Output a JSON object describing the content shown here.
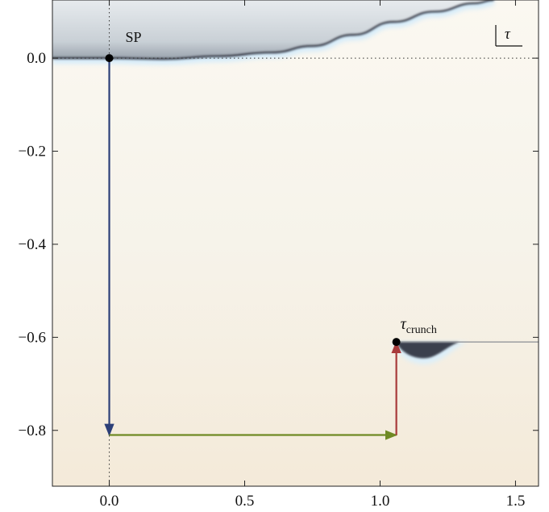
{
  "chart_data": {
    "type": "line",
    "xlim": [
      -0.21,
      1.585
    ],
    "ylim": [
      -0.92,
      0.125
    ],
    "xticks": [
      0.0,
      0.5,
      1.0,
      1.5
    ],
    "yticks": [
      0.0,
      -0.2,
      -0.4,
      -0.6,
      -0.8
    ],
    "xtick_labels": [
      "0.0",
      "0.5",
      "1.0",
      "1.5"
    ],
    "ytick_labels": [
      "0.0",
      "−0.2",
      "−0.4",
      "−0.6",
      "−0.8"
    ],
    "dotted_reference_lines": {
      "x": 0.0,
      "y": 0.0
    },
    "boundary_curve": {
      "x": [
        -0.21,
        0.0,
        0.2,
        0.4,
        0.6,
        0.75,
        0.9,
        1.05,
        1.2,
        1.35,
        1.42
      ],
      "y": [
        0.0,
        0.0,
        -0.002,
        0.004,
        0.012,
        0.026,
        0.05,
        0.078,
        0.1,
        0.118,
        0.125
      ]
    },
    "branch_cut": {
      "x": [
        1.06,
        1.585
      ],
      "y": [
        -0.61,
        -0.61
      ]
    },
    "points": [
      {
        "name": "SP",
        "x": 0.0,
        "y": 0.0
      },
      {
        "name": "τ",
        "sub": "crunch",
        "x": 1.06,
        "y": -0.61
      }
    ],
    "contour_arrows": [
      {
        "from": [
          0.0,
          0.0
        ],
        "to": [
          0.0,
          -0.81
        ],
        "color": "#2c3f78"
      },
      {
        "from": [
          0.0,
          -0.81
        ],
        "to": [
          1.06,
          -0.81
        ],
        "color": "#6f8a24"
      },
      {
        "from": [
          1.06,
          -0.81
        ],
        "to": [
          1.06,
          -0.61
        ],
        "color": "#a83a3a"
      }
    ],
    "plane_label": "τ"
  },
  "colors": {
    "field_top": "#fbf8f1",
    "field_bottom": "#f4ead9",
    "upper_region": "#d9dee2",
    "glow": "#d6ecfa",
    "edge": "#2a2d3a"
  }
}
